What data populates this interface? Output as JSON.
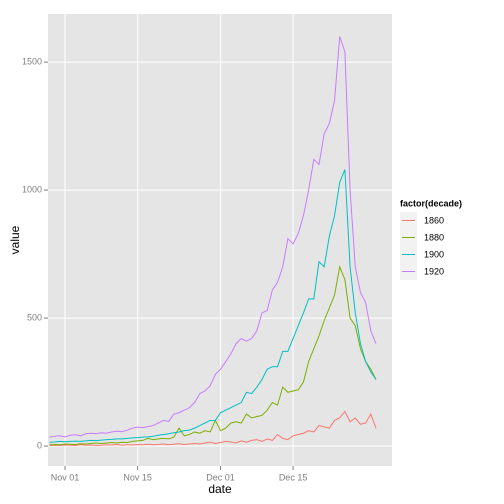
{
  "chart_data": {
    "type": "line",
    "x_label": "date",
    "y_label": "value",
    "legend_title": "factor(decade)",
    "x": [
      "Oct 29",
      "Oct 30",
      "Oct 31",
      "Nov 01",
      "Nov 02",
      "Nov 03",
      "Nov 04",
      "Nov 05",
      "Nov 06",
      "Nov 07",
      "Nov 08",
      "Nov 09",
      "Nov 10",
      "Nov 11",
      "Nov 12",
      "Nov 13",
      "Nov 14",
      "Nov 15",
      "Nov 16",
      "Nov 17",
      "Nov 18",
      "Nov 19",
      "Nov 20",
      "Nov 21",
      "Nov 22",
      "Nov 23",
      "Nov 24",
      "Nov 25",
      "Nov 26",
      "Nov 27",
      "Nov 28",
      "Nov 29",
      "Nov 30",
      "Dec 01",
      "Dec 02",
      "Dec 03",
      "Dec 04",
      "Dec 05",
      "Dec 06",
      "Dec 07",
      "Dec 08",
      "Dec 09",
      "Dec 10",
      "Dec 11",
      "Dec 12",
      "Dec 13",
      "Dec 14",
      "Dec 15",
      "Dec 16",
      "Dec 17",
      "Dec 18",
      "Dec 19",
      "Dec 20",
      "Dec 21",
      "Dec 22",
      "Dec 23",
      "Dec 24",
      "Dec 25",
      "Dec 26",
      "Dec 27",
      "Dec 28",
      "Dec 29",
      "Dec 30",
      "Dec 31"
    ],
    "xticks": [
      "Nov 01",
      "Nov 15",
      "Dec 01",
      "Dec 15"
    ],
    "ylim": [
      -78,
      1688
    ],
    "yticks": [
      0,
      500,
      1000,
      1500
    ],
    "grid": true,
    "legend": "right",
    "series": [
      {
        "name": "1860",
        "color": "#F8766D",
        "values": [
          2,
          3,
          2,
          4,
          3,
          2,
          5,
          3,
          4,
          2,
          3,
          5,
          4,
          6,
          3,
          5,
          4,
          6,
          5,
          7,
          5,
          6,
          8,
          5,
          7,
          9,
          6,
          8,
          10,
          8,
          12,
          15,
          10,
          14,
          18,
          16,
          12,
          20,
          15,
          22,
          25,
          18,
          28,
          22,
          45,
          30,
          25,
          40,
          45,
          50,
          60,
          55,
          80,
          75,
          70,
          100,
          110,
          135,
          95,
          110,
          85,
          90,
          125,
          70
        ]
      },
      {
        "name": "1880",
        "color": "#7CAE00",
        "values": [
          5,
          6,
          5,
          8,
          7,
          6,
          9,
          8,
          10,
          12,
          10,
          12,
          14,
          12,
          15,
          14,
          18,
          20,
          22,
          30,
          25,
          28,
          30,
          28,
          35,
          70,
          40,
          45,
          55,
          50,
          60,
          55,
          100,
          60,
          70,
          90,
          95,
          90,
          125,
          110,
          115,
          120,
          140,
          170,
          160,
          230,
          210,
          215,
          220,
          250,
          330,
          380,
          430,
          490,
          540,
          590,
          700,
          650,
          500,
          470,
          380,
          330,
          300,
          260
        ]
      },
      {
        "name": "1900",
        "color": "#00BFC4",
        "values": [
          15,
          16,
          18,
          17,
          18,
          19,
          18,
          20,
          22,
          21,
          23,
          25,
          26,
          28,
          28,
          30,
          32,
          33,
          35,
          36,
          38,
          42,
          45,
          48,
          52,
          55,
          60,
          62,
          70,
          80,
          90,
          100,
          100,
          130,
          140,
          150,
          160,
          170,
          210,
          205,
          230,
          260,
          300,
          310,
          310,
          370,
          370,
          420,
          470,
          520,
          575,
          575,
          720,
          700,
          820,
          900,
          1030,
          1080,
          700,
          520,
          400,
          330,
          290,
          260
        ]
      },
      {
        "name": "1920",
        "color": "#C77CFF",
        "values": [
          35,
          38,
          40,
          36,
          42,
          44,
          40,
          48,
          50,
          48,
          52,
          50,
          55,
          58,
          56,
          62,
          70,
          74,
          72,
          76,
          80,
          90,
          100,
          96,
          125,
          130,
          140,
          150,
          170,
          205,
          215,
          235,
          280,
          300,
          330,
          360,
          400,
          420,
          410,
          420,
          450,
          520,
          530,
          610,
          640,
          700,
          810,
          790,
          830,
          900,
          1000,
          1120,
          1100,
          1220,
          1260,
          1350,
          1600,
          1540,
          1000,
          700,
          600,
          560,
          450,
          400
        ]
      }
    ]
  }
}
